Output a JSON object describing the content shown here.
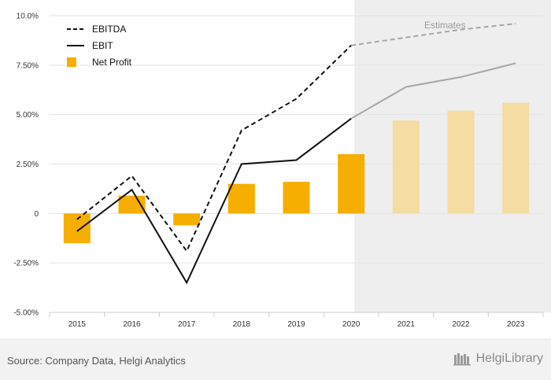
{
  "chart_data": {
    "type": "bar",
    "categories": [
      "2015",
      "2016",
      "2017",
      "2018",
      "2019",
      "2020",
      "2021",
      "2022",
      "2023"
    ],
    "series": [
      {
        "name": "EBITDA",
        "type": "line",
        "style": "dashed",
        "color": "#111111",
        "estimate_color": "#a6a6a6",
        "values": [
          -0.3,
          1.9,
          -1.9,
          4.2,
          5.8,
          8.5,
          8.9,
          9.3,
          9.6
        ]
      },
      {
        "name": "EBIT",
        "type": "line",
        "style": "solid",
        "color": "#111111",
        "estimate_color": "#a6a6a6",
        "values": [
          -0.9,
          1.2,
          -3.5,
          2.5,
          2.7,
          4.8,
          6.4,
          6.9,
          7.6
        ]
      },
      {
        "name": "Net Profit",
        "type": "bar",
        "color": "#f6ae00",
        "estimate_color": "#f4dca2",
        "values": [
          -1.5,
          0.9,
          -0.6,
          1.5,
          1.6,
          3.0,
          4.7,
          5.2,
          5.6
        ]
      }
    ],
    "estimates_from": "2021",
    "estimates_label": "Estimates",
    "ylim": [
      -5,
      10
    ],
    "yticks": [
      -5,
      -2.5,
      0,
      2.5,
      5,
      7.5,
      10
    ],
    "ytick_labels": [
      "-5.00%",
      "-2.50%",
      "0",
      "2.50%",
      "5.00%",
      "7.50%",
      "10.0%"
    ],
    "legend_position": "top-left",
    "grid": true
  },
  "footer": {
    "source": "Source: Company Data, Helgi Analytics",
    "brand": "HelgiLibrary"
  }
}
